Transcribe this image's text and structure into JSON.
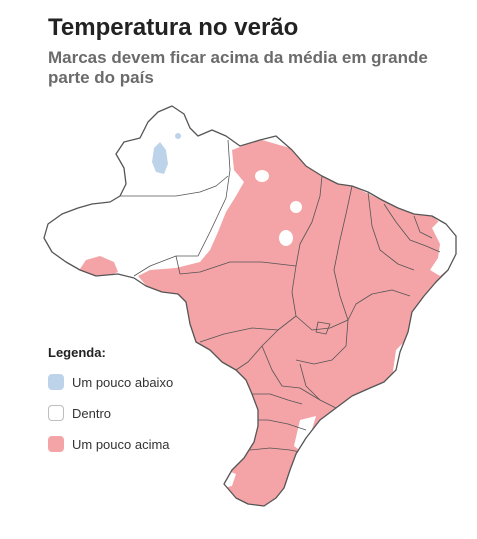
{
  "header": {
    "title": "Temperatura no verão",
    "subtitle": "Marcas devem ficar acima da média em grande parte do país"
  },
  "legend": {
    "title": "Legenda:",
    "items": [
      {
        "label": "Um pouco abaixo",
        "color": "#bdd3ea",
        "border": "#bdd3ea"
      },
      {
        "label": "Dentro",
        "color": "#ffffff",
        "border": "#bdbdbd"
      },
      {
        "label": "Um pouco acima",
        "color": "#f4a3a6",
        "border": "#f4a3a6"
      }
    ]
  },
  "colors": {
    "above": "#f4a3a6",
    "within": "#ffffff",
    "below": "#bdd3ea",
    "border": "#555555"
  }
}
